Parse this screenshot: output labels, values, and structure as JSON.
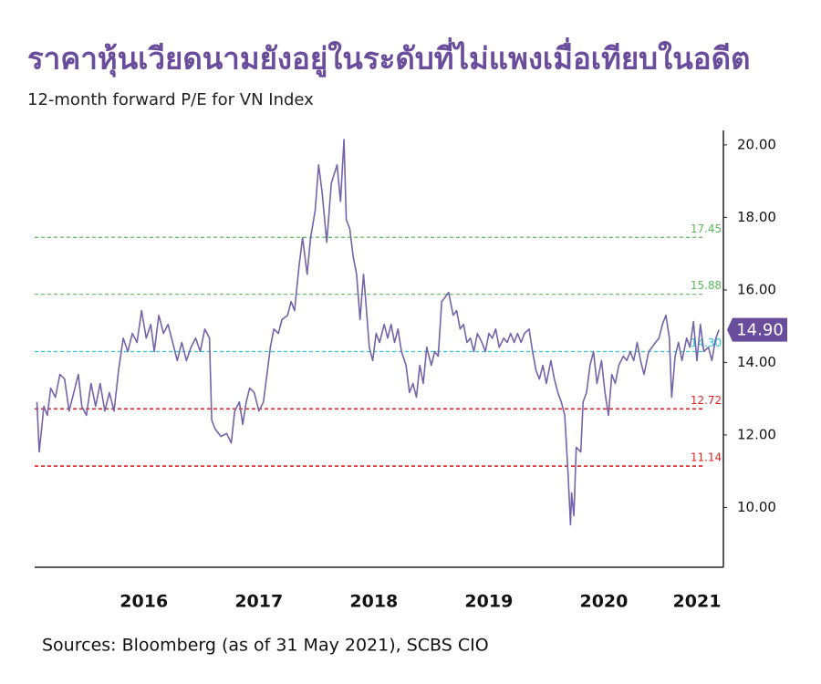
{
  "chart_data": {
    "type": "line",
    "title": "ราคาหุ้นเวียดนามยังอยู่ในระดับที่ไม่แพงเมื่อเทียบในอดีต",
    "subtitle": "12-month forward P/E for VN Index",
    "source": "Sources: Bloomberg (as of 31 May 2021), SCBS CIO",
    "color": "#7563a8",
    "x": [
      2015.57,
      2015.59,
      2015.63,
      2015.66,
      2015.69,
      2015.73,
      2015.77,
      2015.81,
      2015.85,
      2015.89,
      2015.93,
      2015.96,
      2016.0,
      2016.04,
      2016.08,
      2016.12,
      2016.16,
      2016.2,
      2016.24,
      2016.28,
      2016.32,
      2016.36,
      2016.4,
      2016.44,
      2016.48,
      2016.52,
      2016.56,
      2016.59,
      2016.63,
      2016.67,
      2016.71,
      2016.75,
      2016.79,
      2016.83,
      2016.87,
      2016.91,
      2016.95,
      2016.99,
      2017.03,
      2017.07,
      2017.09,
      2017.12,
      2017.17,
      2017.22,
      2017.26,
      2017.29,
      2017.33,
      2017.36,
      2017.39,
      2017.42,
      2017.46,
      2017.5,
      2017.54,
      2017.58,
      2017.6,
      2017.63,
      2017.67,
      2017.7,
      2017.75,
      2017.78,
      2017.81,
      2017.85,
      2017.88,
      2017.92,
      2017.95,
      2017.99,
      2018.02,
      2018.05,
      2018.09,
      2018.13,
      2018.18,
      2018.21,
      2018.24,
      2018.26,
      2018.29,
      2018.32,
      2018.35,
      2018.38,
      2018.41,
      2018.43,
      2018.46,
      2018.49,
      2018.52,
      2018.55,
      2018.59,
      2018.62,
      2018.65,
      2018.68,
      2018.71,
      2018.74,
      2018.78,
      2018.81,
      2018.84,
      2018.87,
      2018.9,
      2018.93,
      2018.96,
      2019.0,
      2019.03,
      2019.06,
      2019.09,
      2019.12,
      2019.15,
      2019.19,
      2019.22,
      2019.25,
      2019.28,
      2019.31,
      2019.34,
      2019.37,
      2019.4,
      2019.44,
      2019.47,
      2019.5,
      2019.53,
      2019.56,
      2019.59,
      2019.63,
      2019.66,
      2019.69,
      2019.72,
      2019.75,
      2019.78,
      2019.81,
      2019.85,
      2019.88,
      2019.91,
      2019.94,
      2019.97,
      2020.0,
      2020.04,
      2020.07,
      2020.1,
      2020.13,
      2020.16,
      2020.19,
      2020.21,
      2020.22,
      2020.24,
      2020.26,
      2020.3,
      2020.32,
      2020.35,
      2020.38,
      2020.41,
      2020.44,
      2020.48,
      2020.51,
      2020.54,
      2020.57,
      2020.6,
      2020.63,
      2020.67,
      2020.7,
      2020.73,
      2020.76,
      2020.79,
      2020.82,
      2020.85,
      2020.89,
      2020.92,
      2020.95,
      2020.98,
      2021.01,
      2021.04,
      2021.07,
      2021.09,
      2021.12,
      2021.15,
      2021.18,
      2021.22,
      2021.25,
      2021.28,
      2021.31,
      2021.34,
      2021.37,
      2021.41,
      2021.44,
      2021.47,
      2021.5
    ],
    "values": [
      12.91,
      11.53,
      12.79,
      12.54,
      13.29,
      13.04,
      13.67,
      13.54,
      12.66,
      13.17,
      13.67,
      12.79,
      12.54,
      13.42,
      12.79,
      13.42,
      12.66,
      13.17,
      12.66,
      13.79,
      14.67,
      14.3,
      14.8,
      14.55,
      15.43,
      14.67,
      15.05,
      14.3,
      15.3,
      14.8,
      15.05,
      14.55,
      14.05,
      14.55,
      14.05,
      14.42,
      14.67,
      14.3,
      14.92,
      14.67,
      12.41,
      12.16,
      11.96,
      12.04,
      11.78,
      12.66,
      12.91,
      12.29,
      12.91,
      13.29,
      13.17,
      12.66,
      12.91,
      13.92,
      14.42,
      14.92,
      14.8,
      15.18,
      15.3,
      15.68,
      15.43,
      16.68,
      17.44,
      16.43,
      17.44,
      18.19,
      19.45,
      18.69,
      17.31,
      18.94,
      19.45,
      18.44,
      20.15,
      17.94,
      17.69,
      16.93,
      16.43,
      15.18,
      16.43,
      15.68,
      14.42,
      14.05,
      14.8,
      14.55,
      15.05,
      14.67,
      15.05,
      14.55,
      14.92,
      14.3,
      13.92,
      13.17,
      13.42,
      13.04,
      13.92,
      13.42,
      14.42,
      13.92,
      14.3,
      14.17,
      15.68,
      15.8,
      15.93,
      15.3,
      15.43,
      14.92,
      15.05,
      14.55,
      14.67,
      14.3,
      14.8,
      14.55,
      14.3,
      14.8,
      14.67,
      14.92,
      14.42,
      14.67,
      14.55,
      14.8,
      14.55,
      14.8,
      14.55,
      14.8,
      14.92,
      14.3,
      13.79,
      13.54,
      13.92,
      13.42,
      14.05,
      13.54,
      13.17,
      12.91,
      12.54,
      10.9,
      9.52,
      10.4,
      9.77,
      11.66,
      11.53,
      12.91,
      13.17,
      13.92,
      14.3,
      13.42,
      14.05,
      13.17,
      12.54,
      13.67,
      13.42,
      13.92,
      14.17,
      14.05,
      14.3,
      14.05,
      14.55,
      14.05,
      13.67,
      14.3,
      14.42,
      14.55,
      14.67,
      15.05,
      15.3,
      14.67,
      13.04,
      14.17,
      14.55,
      14.05,
      14.67,
      14.42,
      15.13,
      14.05,
      15.05,
      14.3,
      14.42,
      14.05,
      14.62,
      14.9
    ],
    "value_labels": {
      "179": "14.90"
    },
    "xlim": [
      2015.55,
      2021.54
    ],
    "xticks": [
      2016,
      2017,
      2018,
      2019,
      2020,
      2021
    ],
    "ylim": [
      8.35,
      20.4
    ],
    "yticks": [
      {
        "value": 10,
        "label": "10.00"
      },
      {
        "value": 12,
        "label": "12.00"
      },
      {
        "value": 14,
        "label": "14.00"
      },
      {
        "value": 16,
        "label": "16.00"
      },
      {
        "value": 18,
        "label": "18.00"
      },
      {
        "value": 20,
        "label": "20.00"
      }
    ],
    "reference_lines": [
      {
        "value": 17.45,
        "color": "#5cb85c"
      },
      {
        "value": 15.88,
        "color": "#5cb85c"
      },
      {
        "value": 14.3,
        "label": "14.30",
        "color": "#27c6dc"
      },
      {
        "value": 12.72,
        "color": "#e02424"
      },
      {
        "value": 11.14,
        "color": "#e02424"
      }
    ]
  }
}
